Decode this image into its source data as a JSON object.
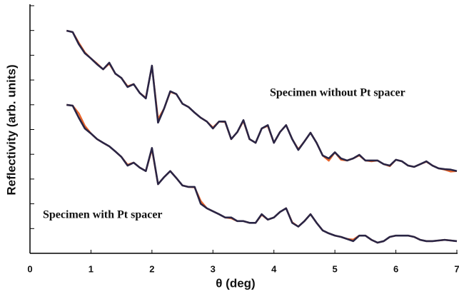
{
  "chart_data": {
    "type": "line",
    "xlabel": "θ (deg)",
    "ylabel": "Reflectivity (arb. units)",
    "annotations": [
      "Specimen without Pt spacer",
      "Specimen with Pt spacer"
    ],
    "x": [
      0.6,
      0.7,
      0.8,
      0.9,
      1.0,
      1.1,
      1.2,
      1.3,
      1.4,
      1.5,
      1.6,
      1.7,
      1.8,
      1.9,
      2.0,
      2.1,
      2.2,
      2.3,
      2.4,
      2.5,
      2.6,
      2.7,
      2.8,
      2.9,
      3.0,
      3.1,
      3.2,
      3.3,
      3.4,
      3.5,
      3.6,
      3.7,
      3.8,
      3.9,
      4.0,
      4.1,
      4.2,
      4.3,
      4.4,
      4.5,
      4.6,
      4.7,
      4.8,
      4.9,
      5.0,
      5.1,
      5.2,
      5.3,
      5.4,
      5.5,
      5.6,
      5.7,
      5.8,
      5.9,
      6.0,
      6.1,
      6.2,
      6.3,
      6.4,
      6.5,
      6.6,
      6.7,
      6.8,
      6.9,
      7.0
    ],
    "series": [
      {
        "color": "#e8642a",
        "values": [
          0.098,
          0.086,
          0.032,
          0.013,
          0.0074,
          0.0046,
          0.0027,
          0.0046,
          0.0018,
          0.0012,
          0.00056,
          0.00068,
          0.0003,
          0.00019,
          0.0036,
          2.6e-05,
          7.1e-05,
          0.00033,
          0.00027,
          0.00011,
          8.1e-05,
          4.8e-05,
          3e-05,
          2.1e-05,
          1.2e-05,
          2.1e-05,
          2e-05,
          4.1e-06,
          7.9e-06,
          2.2e-05,
          4.1e-06,
          2.9e-06,
          1.1e-05,
          1.4e-05,
          2.9e-06,
          7.9e-06,
          1.5e-05,
          4.1e-06,
          1.6e-06,
          3.3e-06,
          7.4e-06,
          2.9e-06,
          8.9e-07,
          5.5e-07,
          1.2e-06,
          6e-07,
          5.6e-07,
          6.8e-07,
          9e-07,
          5.6e-07,
          5.2e-07,
          5.6e-07,
          4e-07,
          3.3e-07,
          6e-07,
          5.2e-07,
          3.5e-07,
          3.1e-07,
          4e-07,
          5e-07,
          3.5e-07,
          2.7e-07,
          2.4e-07,
          2e-07,
          2.1e-07
        ]
      },
      {
        "color": "#2a2545",
        "values": [
          0.098,
          0.086,
          0.028,
          0.012,
          0.0074,
          0.0043,
          0.0027,
          0.005,
          0.0018,
          0.0012,
          0.00052,
          0.00068,
          0.0003,
          0.00018,
          0.0038,
          1.9e-05,
          7.1e-05,
          0.00035,
          0.00027,
          0.00011,
          8.1e-05,
          4.8e-05,
          3e-05,
          2.1e-05,
          1.1e-05,
          2.1e-05,
          2.1e-05,
          4.1e-06,
          7.9e-06,
          2.4e-05,
          4.1e-06,
          2.9e-06,
          1.1e-05,
          1.5e-05,
          2.9e-06,
          7.9e-06,
          1.5e-05,
          4.1e-06,
          1.5e-06,
          3.3e-06,
          7.4e-06,
          2.9e-06,
          8.9e-07,
          6.8e-07,
          1.2e-06,
          6.8e-07,
          5.6e-07,
          6.8e-07,
          9.5e-07,
          5.6e-07,
          5.6e-07,
          5.6e-07,
          4e-07,
          3.5e-07,
          6e-07,
          5.2e-07,
          3.5e-07,
          3.1e-07,
          4e-07,
          5.2e-07,
          3.5e-07,
          2.7e-07,
          2.5e-07,
          2.4e-07,
          2.1e-07
        ]
      },
      {
        "color": "#e8642a",
        "values": [
          9.9e-05,
          9.2e-05,
          4.5e-05,
          1.4e-05,
          6.9e-06,
          4.1e-06,
          2.9e-06,
          2.1e-06,
          1.3e-06,
          7.8e-07,
          3.8e-07,
          4.6e-07,
          2.9e-07,
          2.1e-07,
          1.6e-06,
          6.2e-08,
          1.2e-07,
          2.1e-07,
          1.1e-07,
          5.5e-08,
          4.8e-08,
          4.6e-08,
          1.3e-08,
          6.6e-09,
          5e-09,
          3.8e-09,
          2.8e-09,
          2.6e-09,
          2e-09,
          2e-09,
          1.7e-09,
          1.7e-09,
          3.6e-09,
          2.3e-09,
          2.8e-09,
          4.7e-09,
          6.6e-09,
          1.8e-09,
          1.2e-09,
          2e-09,
          3.8e-09,
          1.7e-09,
          8.4e-10,
          6.4e-10,
          5.2e-10,
          4.6e-10,
          3.8e-10,
          3.6e-10,
          5.2e-10,
          5.2e-10,
          3.5e-10,
          2.7e-10,
          3.1e-10,
          4.6e-10,
          5.2e-10,
          5.2e-10,
          5.2e-10,
          4.6e-10,
          3.5e-10,
          3.1e-10,
          3.1e-10,
          3.3e-10,
          3.5e-10,
          3.3e-10,
          3.1e-10
        ]
      },
      {
        "color": "#2a2545",
        "values": [
          9.9e-05,
          9.2e-05,
          3e-05,
          1.1e-05,
          6.9e-06,
          4.1e-06,
          2.9e-06,
          2.1e-06,
          1.3e-06,
          7.8e-07,
          3.5e-07,
          4.6e-07,
          2.9e-07,
          2.1e-07,
          1.8e-06,
          6.2e-08,
          1.2e-07,
          2.1e-07,
          1.1e-07,
          5.5e-08,
          4.8e-08,
          4.8e-08,
          1e-08,
          6.6e-09,
          5e-09,
          3.8e-09,
          2.8e-09,
          2.8e-09,
          2e-09,
          2e-09,
          1.7e-09,
          1.7e-09,
          3.8e-09,
          2.3e-09,
          2.8e-09,
          4.7e-09,
          6.6e-09,
          1.7e-09,
          1.2e-09,
          2e-09,
          3.8e-09,
          1.7e-09,
          8.4e-10,
          6.4e-10,
          5.2e-10,
          4.6e-10,
          3.8e-10,
          3.1e-10,
          5.2e-10,
          5.2e-10,
          3.5e-10,
          2.7e-10,
          3.1e-10,
          4.6e-10,
          5.2e-10,
          5.2e-10,
          5.2e-10,
          4.6e-10,
          3.5e-10,
          3.1e-10,
          3.1e-10,
          3.3e-10,
          3.5e-10,
          3.3e-10,
          3.1e-10
        ]
      }
    ],
    "xlim": [
      0,
      7
    ],
    "xticks": [
      0,
      1,
      2,
      3,
      4,
      5,
      6,
      7
    ],
    "ylim": [
      1e-10,
      1
    ],
    "yticks": [
      1e-10,
      1e-09,
      1e-08,
      1e-07,
      1e-06,
      1e-05,
      0.0001,
      0.001,
      0.01,
      0.1,
      1
    ],
    "log_scale_y": true
  }
}
